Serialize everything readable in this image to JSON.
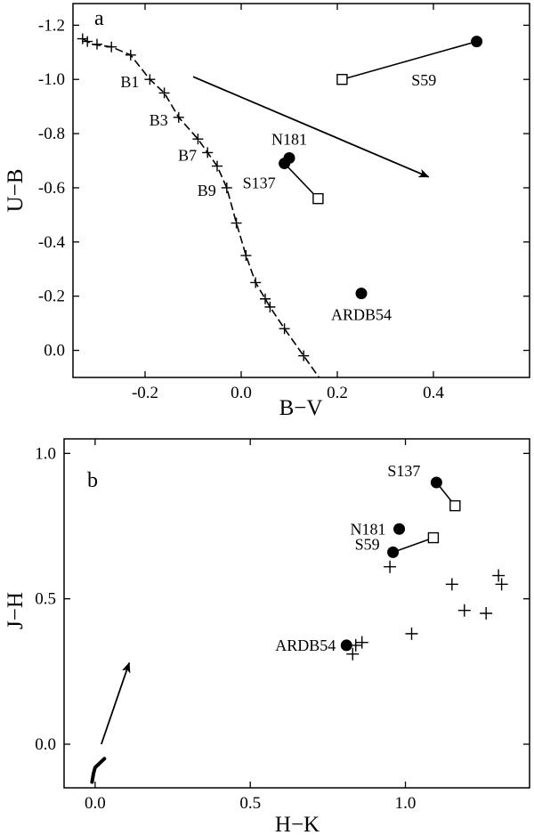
{
  "chart_data": [
    {
      "type": "scatter",
      "panel": "a",
      "xlabel": "B−V",
      "ylabel": "U−B",
      "xlim": [
        -0.35,
        0.6
      ],
      "ylim": [
        0.1,
        -1.28
      ],
      "y_inverted": true,
      "xticks": [
        -0.2,
        0.0,
        0.2,
        0.4
      ],
      "xtick_labels": [
        "-0.2",
        "0.0",
        "0.2",
        "0.4"
      ],
      "yticks": [
        -1.2,
        -1.0,
        -0.8,
        -0.6,
        -0.4,
        -0.2,
        0.0
      ],
      "ytick_labels": [
        "-1.2",
        "-1.0",
        "-0.8",
        "-0.6",
        "-0.4",
        "-0.2",
        "0.0"
      ],
      "reddening_vector": {
        "from": [
          -0.1,
          -1.01
        ],
        "to": [
          0.39,
          -0.64
        ]
      },
      "main_sequence": {
        "line": [
          [
            -0.33,
            -1.15
          ],
          [
            -0.31,
            -1.13
          ],
          [
            -0.27,
            -1.12
          ],
          [
            -0.23,
            -1.09
          ],
          [
            -0.19,
            -1.0
          ],
          [
            -0.16,
            -0.95
          ],
          [
            -0.13,
            -0.86
          ],
          [
            -0.09,
            -0.78
          ],
          [
            -0.07,
            -0.73
          ],
          [
            -0.05,
            -0.68
          ],
          [
            -0.03,
            -0.6
          ],
          [
            -0.01,
            -0.47
          ],
          [
            0.01,
            -0.35
          ],
          [
            0.03,
            -0.25
          ],
          [
            0.05,
            -0.19
          ],
          [
            0.06,
            -0.16
          ],
          [
            0.09,
            -0.08
          ],
          [
            0.13,
            0.02
          ],
          [
            0.17,
            0.12
          ]
        ],
        "markers": [
          [
            -0.33,
            -1.15
          ],
          [
            -0.32,
            -1.14
          ],
          [
            -0.3,
            -1.13
          ],
          [
            -0.27,
            -1.12
          ],
          [
            -0.23,
            -1.09
          ],
          [
            -0.19,
            -1.0
          ],
          [
            -0.16,
            -0.95
          ],
          [
            -0.13,
            -0.86
          ],
          [
            -0.09,
            -0.78
          ],
          [
            -0.07,
            -0.73
          ],
          [
            -0.05,
            -0.68
          ],
          [
            -0.03,
            -0.6
          ],
          [
            -0.01,
            -0.47
          ],
          [
            0.01,
            -0.35
          ],
          [
            0.03,
            -0.25
          ],
          [
            0.05,
            -0.19
          ],
          [
            0.06,
            -0.16
          ],
          [
            0.09,
            -0.08
          ],
          [
            0.13,
            0.02
          ]
        ],
        "labels": [
          {
            "text": "B1",
            "at": [
              -0.19,
              -1.0
            ]
          },
          {
            "text": "B3",
            "at": [
              -0.13,
              -0.86
            ]
          },
          {
            "text": "B7",
            "at": [
              -0.07,
              -0.73
            ]
          },
          {
            "text": "B9",
            "at": [
              -0.03,
              -0.6
            ]
          }
        ]
      },
      "stars": [
        {
          "name": "S59",
          "observed": [
            0.49,
            -1.14
          ],
          "corrected": [
            0.21,
            -1.0
          ]
        },
        {
          "name": "N181",
          "observed": [
            0.1,
            -0.71
          ],
          "corrected": null
        },
        {
          "name": "S137",
          "observed": [
            0.09,
            -0.69
          ],
          "corrected": [
            0.16,
            -0.56
          ]
        },
        {
          "name": "ARDB54",
          "observed": [
            0.25,
            -0.21
          ],
          "corrected": null
        }
      ]
    },
    {
      "type": "scatter",
      "panel": "b",
      "xlabel": "H−K",
      "ylabel": "J−H",
      "xlim": [
        -0.1,
        1.4
      ],
      "ylim": [
        -0.15,
        1.05
      ],
      "xticks": [
        0.0,
        0.5,
        1.0
      ],
      "xtick_labels": [
        "0.0",
        "0.5",
        "1.0"
      ],
      "yticks": [
        0.0,
        0.5,
        1.0
      ],
      "ytick_labels": [
        "0.0",
        "0.5",
        "1.0"
      ],
      "reddening_vector": {
        "from": [
          0.02,
          0.0
        ],
        "to": [
          0.11,
          0.28
        ]
      },
      "intrinsic_locus": [
        [
          -0.01,
          -0.13
        ],
        [
          -0.005,
          -0.1
        ],
        [
          0.0,
          -0.08
        ],
        [
          0.01,
          -0.07
        ],
        [
          0.02,
          -0.06
        ],
        [
          0.03,
          -0.05
        ]
      ],
      "cross_markers": [
        [
          0.83,
          0.31
        ],
        [
          0.84,
          0.34
        ],
        [
          0.86,
          0.35
        ],
        [
          0.95,
          0.61
        ],
        [
          1.02,
          0.38
        ],
        [
          1.15,
          0.55
        ],
        [
          1.19,
          0.46
        ],
        [
          1.26,
          0.45
        ],
        [
          1.3,
          0.58
        ],
        [
          1.31,
          0.55
        ]
      ],
      "stars": [
        {
          "name": "S137",
          "observed": [
            1.1,
            0.9
          ],
          "corrected": [
            1.16,
            0.82
          ]
        },
        {
          "name": "N181",
          "observed": [
            0.98,
            0.74
          ],
          "corrected": null
        },
        {
          "name": "S59",
          "observed": [
            0.96,
            0.66
          ],
          "corrected": [
            1.09,
            0.71
          ]
        },
        {
          "name": "ARDB54",
          "observed": [
            0.81,
            0.34
          ],
          "corrected": null
        }
      ]
    }
  ]
}
